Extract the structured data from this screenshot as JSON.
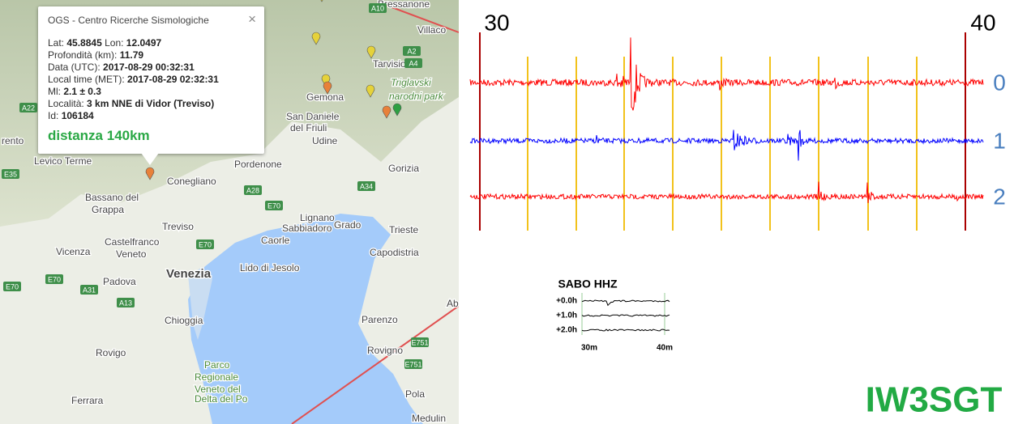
{
  "map": {
    "labels": [
      "Bressanone",
      "Villaco",
      "Tarvisio",
      "Triglavski",
      "narodni park",
      "Gemona",
      "San Daniele",
      "del Friuli",
      "Udine",
      "Pordenone",
      "Conegliano",
      "Gorizia",
      "rento",
      "Levico Terme",
      "Bassano del",
      "Grappa",
      "Treviso",
      "Castelfranco",
      "Veneto",
      "Vicenza",
      "Padova",
      "Venezia",
      "Lignano",
      "Sabbiadoro",
      "Grado",
      "Caorle",
      "Lido di Jesolo",
      "Trieste",
      "Capodistria",
      "Chioggia",
      "Rovigo",
      "Parco",
      "Regionale",
      "Veneto del",
      "Delta del Po",
      "Ferrara",
      "Parenzo",
      "Rovigno",
      "Pola",
      "Medulin",
      "Ab"
    ],
    "roads": [
      "A22",
      "E35",
      "A28",
      "E70",
      "A34",
      "E70",
      "E70",
      "A31",
      "A13",
      "E70",
      "A4",
      "A2",
      "A10",
      "E751",
      "E751"
    ]
  },
  "popup": {
    "title": "OGS - Centro Ricerche Sismologiche",
    "close": "×",
    "fields": [
      {
        "label": "Lat:",
        "value": "45.8845"
      },
      {
        "label": "Lon:",
        "value": "12.0497"
      },
      {
        "label": "Profondità (km):",
        "value": "11.79"
      },
      {
        "label": "Data (UTC):",
        "value": "2017-08-29 00:32:31"
      },
      {
        "label": "Local time (MET):",
        "value": "2017-08-29 02:32:31"
      },
      {
        "label": "Ml:",
        "value": "2.1 ± 0.3"
      },
      {
        "label": "Località:",
        "value": "3 km NNE di Vidor (Treviso)"
      },
      {
        "label": "Id:",
        "value": "106184"
      }
    ],
    "distance": "distanza 140km"
  },
  "seismogram": {
    "start": "30",
    "end": "40",
    "channels": [
      "0",
      "1",
      "2"
    ],
    "inset": {
      "title": "SABO HHZ",
      "rows": [
        "+0.0h",
        "+1.0h",
        "+2.0h"
      ],
      "start": "30m",
      "end": "40m"
    },
    "station": "IW3SGT"
  }
}
